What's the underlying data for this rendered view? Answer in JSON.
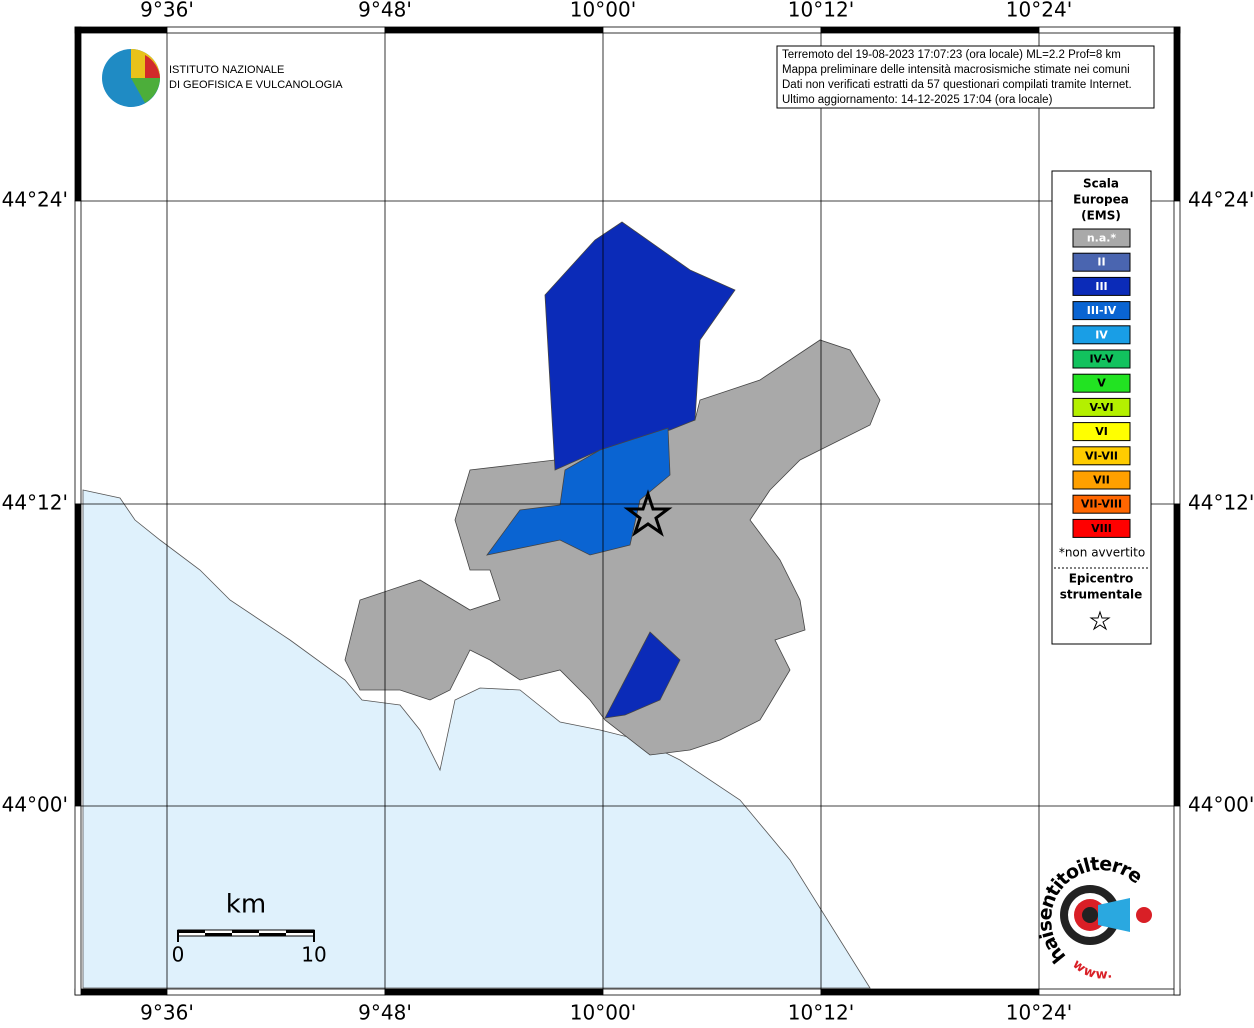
{
  "header": {
    "institute": [
      "ISTITUTO NAZIONALE",
      "DI GEOFISICA E VULCANOLOGIA"
    ]
  },
  "info": [
    "Terremoto del 19-08-2023 17:07:23 (ora locale) ML=2.2 Prof=8 km",
    "Mappa preliminare delle intensità macrosismiche stimate nei comuni",
    "Dati non verificati estratti da 57 questionari compilati tramite Internet.",
    "Ultimo aggiornamento: 14-12-2025 17:04 (ora locale)"
  ],
  "axes": {
    "longitude": [
      "9°36'",
      "9°48'",
      "10°00'",
      "10°12'",
      "10°24'"
    ],
    "latitude": [
      "44°24'",
      "44°12'",
      "44°00'"
    ]
  },
  "legend": {
    "title": [
      "Scala",
      "Europea",
      "(EMS)"
    ],
    "items": [
      {
        "label": "n.a.*",
        "color": "#a9a9a9"
      },
      {
        "label": "II",
        "color": "#4a65b0"
      },
      {
        "label": "III",
        "color": "#0b2bb8"
      },
      {
        "label": "III-IV",
        "color": "#0a64d2"
      },
      {
        "label": "IV",
        "color": "#199ee6"
      },
      {
        "label": "IV-V",
        "color": "#12c25e"
      },
      {
        "label": "V",
        "color": "#22e322"
      },
      {
        "label": "V-VI",
        "color": "#b4f000"
      },
      {
        "label": "VI",
        "color": "#ffff00"
      },
      {
        "label": "VI-VII",
        "color": "#ffcc00"
      },
      {
        "label": "VII",
        "color": "#ffa000"
      },
      {
        "label": "VII-VIII",
        "color": "#ff6600"
      },
      {
        "label": "VIII",
        "color": "#ff0000"
      }
    ],
    "note": "*non avvertito",
    "epicenter": [
      "Epicentro",
      "strumentale"
    ]
  },
  "scale_bar": {
    "unit": "km",
    "labels": [
      "0",
      "10"
    ]
  },
  "logo": {
    "site": "haisentitoilterremoto.it",
    "www": "www."
  }
}
